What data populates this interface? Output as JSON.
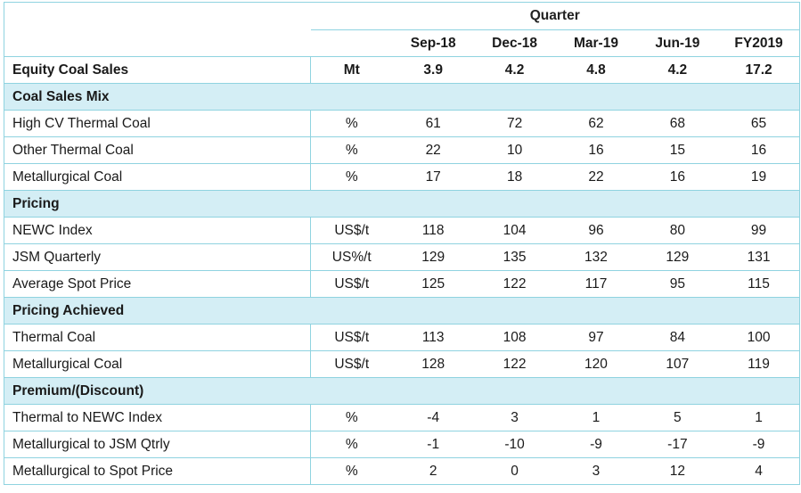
{
  "header": {
    "group_label": "Quarter",
    "columns": [
      "Sep-18",
      "Dec-18",
      "Mar-19",
      "Jun-19",
      "FY2019"
    ]
  },
  "summary_row": {
    "label": "Equity Coal Sales",
    "unit": "Mt",
    "values": [
      "3.9",
      "4.2",
      "4.8",
      "4.2",
      "17.2"
    ]
  },
  "sections": [
    {
      "title": "Coal Sales Mix",
      "rows": [
        {
          "label": "High CV Thermal Coal",
          "unit": "%",
          "values": [
            "61",
            "72",
            "62",
            "68",
            "65"
          ]
        },
        {
          "label": "Other Thermal Coal",
          "unit": "%",
          "values": [
            "22",
            "10",
            "16",
            "15",
            "16"
          ]
        },
        {
          "label": "Metallurgical Coal",
          "unit": "%",
          "values": [
            "17",
            "18",
            "22",
            "16",
            "19"
          ]
        }
      ]
    },
    {
      "title": "Pricing",
      "rows": [
        {
          "label": "NEWC Index",
          "unit": "US$/t",
          "values": [
            "118",
            "104",
            "96",
            "80",
            "99"
          ]
        },
        {
          "label": "JSM Quarterly",
          "unit": "US%/t",
          "values": [
            "129",
            "135",
            "132",
            "129",
            "131"
          ]
        },
        {
          "label": "Average Spot Price",
          "unit": "US$/t",
          "values": [
            "125",
            "122",
            "117",
            "95",
            "115"
          ]
        }
      ]
    },
    {
      "title": "Pricing Achieved",
      "rows": [
        {
          "label": "Thermal Coal",
          "unit": "US$/t",
          "values": [
            "113",
            "108",
            "97",
            "84",
            "100"
          ]
        },
        {
          "label": "Metallurgical Coal",
          "unit": "US$/t",
          "values": [
            "128",
            "122",
            "120",
            "107",
            "119"
          ]
        }
      ]
    },
    {
      "title": "Premium/(Discount)",
      "rows": [
        {
          "label": "Thermal to NEWC Index",
          "unit": "%",
          "values": [
            "-4",
            "3",
            "1",
            "5",
            "1"
          ]
        },
        {
          "label": "Metallurgical to JSM Qtrly",
          "unit": "%",
          "values": [
            "-1",
            "-10",
            "-9",
            "-17",
            "-9"
          ]
        },
        {
          "label": "Metallurgical to Spot Price",
          "unit": "%",
          "values": [
            "2",
            "0",
            "3",
            "12",
            "4"
          ]
        }
      ]
    }
  ]
}
